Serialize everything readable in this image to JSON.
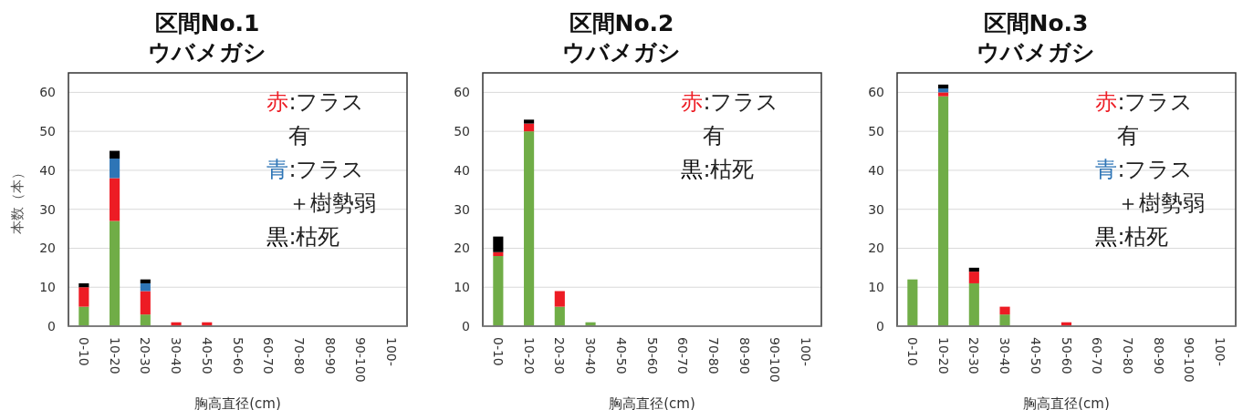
{
  "chart_data": [
    {
      "type": "bar",
      "title": "区間No.1",
      "subtitle": "ウバメガシ",
      "xlabel": "胸高直径(cm)",
      "ylabel": "本数（本）",
      "categories": [
        "0-10",
        "10-20",
        "20-30",
        "30-40",
        "40-50",
        "50-60",
        "60-70",
        "70-80",
        "80-90",
        "90-100",
        "100-"
      ],
      "stacked": true,
      "ylim": [
        0,
        65
      ],
      "yticks": [
        0,
        10,
        20,
        30,
        40,
        50,
        60
      ],
      "grid": "y",
      "legend": "top right",
      "series": [
        {
          "color": "#70ad47",
          "values": [
            5,
            27,
            3,
            0,
            0,
            0,
            0,
            0,
            0,
            0,
            0
          ]
        },
        {
          "name": "赤:フラス有",
          "color": "#ed1c24",
          "values": [
            5,
            11,
            6,
            1,
            1,
            0,
            0,
            0,
            0,
            0,
            0
          ]
        },
        {
          "name": "青:フラス＋樹勢弱",
          "color": "#2e75b6",
          "values": [
            0,
            5,
            2,
            0,
            0,
            0,
            0,
            0,
            0,
            0,
            0
          ]
        },
        {
          "name": "黒:枯死",
          "color": "#000000",
          "values": [
            1,
            2,
            1,
            0,
            0,
            0,
            0,
            0,
            0,
            0,
            0
          ]
        }
      ]
    },
    {
      "type": "bar",
      "title": "区間No.2",
      "subtitle": "ウバメガシ",
      "xlabel": "胸高直径(cm)",
      "categories": [
        "0-10",
        "10-20",
        "20-30",
        "30-40",
        "40-50",
        "50-60",
        "60-70",
        "70-80",
        "80-90",
        "90-100",
        "100-"
      ],
      "stacked": true,
      "ylim": [
        0,
        65
      ],
      "yticks": [
        0,
        10,
        20,
        30,
        40,
        50,
        60
      ],
      "grid": "y",
      "legend": "top right",
      "series": [
        {
          "color": "#70ad47",
          "values": [
            18,
            50,
            5,
            1,
            0,
            0,
            0,
            0,
            0,
            0,
            0
          ]
        },
        {
          "name": "赤:フラス有",
          "color": "#ed1c24",
          "values": [
            1,
            2,
            4,
            0,
            0,
            0,
            0,
            0,
            0,
            0,
            0
          ]
        },
        {
          "name": "黒:枯死",
          "color": "#000000",
          "values": [
            4,
            1,
            0,
            0,
            0,
            0,
            0,
            0,
            0,
            0,
            0
          ]
        }
      ]
    },
    {
      "type": "bar",
      "title": "区間No.3",
      "subtitle": "ウバメガシ",
      "xlabel": "胸高直径(cm)",
      "categories": [
        "0-10",
        "10-20",
        "20-30",
        "30-40",
        "40-50",
        "50-60",
        "60-70",
        "70-80",
        "80-90",
        "90-100",
        "100-"
      ],
      "stacked": true,
      "ylim": [
        0,
        65
      ],
      "yticks": [
        0,
        10,
        20,
        30,
        40,
        50,
        60
      ],
      "grid": "y",
      "legend": "top right",
      "series": [
        {
          "color": "#70ad47",
          "values": [
            12,
            59,
            11,
            3,
            0,
            0,
            0,
            0,
            0,
            0,
            0
          ]
        },
        {
          "name": "赤:フラス有",
          "color": "#ed1c24",
          "values": [
            0,
            1,
            3,
            2,
            0,
            1,
            0,
            0,
            0,
            0,
            0
          ]
        },
        {
          "name": "青:フラス＋樹勢弱",
          "color": "#2e75b6",
          "values": [
            0,
            1,
            0,
            0,
            0,
            0,
            0,
            0,
            0,
            0,
            0
          ]
        },
        {
          "name": "黒:枯死",
          "color": "#000000",
          "values": [
            0,
            1,
            1,
            0,
            0,
            0,
            0,
            0,
            0,
            0,
            0
          ]
        }
      ]
    }
  ]
}
